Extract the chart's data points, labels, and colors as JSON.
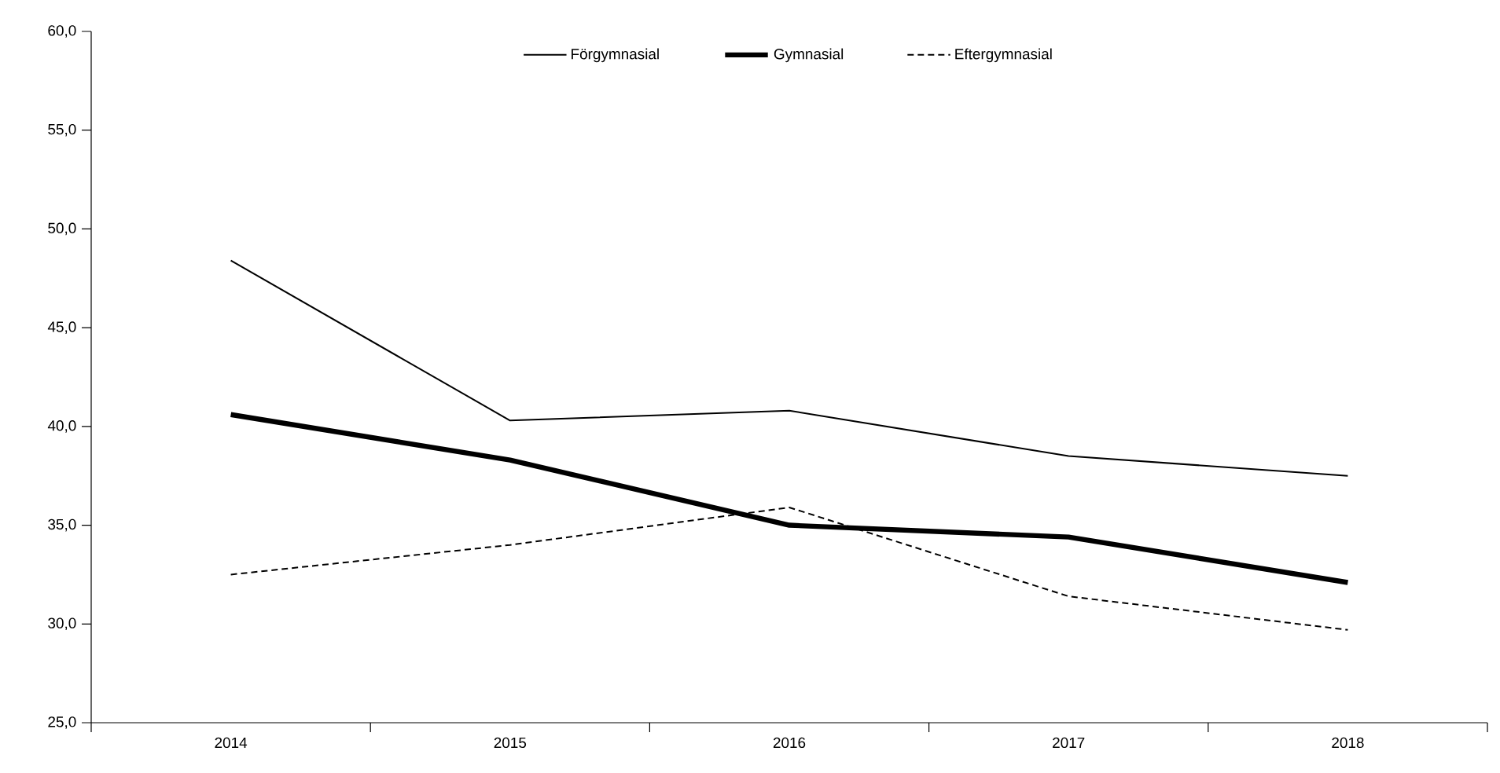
{
  "chart_data": {
    "type": "line",
    "categories": [
      "2014",
      "2015",
      "2016",
      "2017",
      "2018"
    ],
    "series": [
      {
        "name": "Förgymnasial",
        "color": "#000000",
        "line_style": "solid",
        "values": [
          48.4,
          40.3,
          40.8,
          38.5,
          37.5
        ]
      },
      {
        "name": "Gymnasial",
        "color": "#000000",
        "line_style": "solid",
        "values": [
          40.6,
          38.3,
          35.0,
          34.4,
          32.1
        ]
      },
      {
        "name": "Eftergymnasial",
        "color": "#000000",
        "line_style": "dashed",
        "values": [
          32.5,
          34.0,
          35.9,
          31.4,
          29.7
        ]
      }
    ],
    "ylim": [
      25,
      60
    ],
    "yticks": [
      {
        "value": 25,
        "label": "25,0"
      },
      {
        "value": 30,
        "label": "30,0"
      },
      {
        "value": 35,
        "label": "35,0"
      },
      {
        "value": 40,
        "label": "40,0"
      },
      {
        "value": 45,
        "label": "45,0"
      },
      {
        "value": 50,
        "label": "50,0"
      },
      {
        "value": 55,
        "label": "55,0"
      },
      {
        "value": 60,
        "label": "60,0"
      }
    ],
    "grid": false,
    "legend": "top",
    "marker": "none"
  }
}
